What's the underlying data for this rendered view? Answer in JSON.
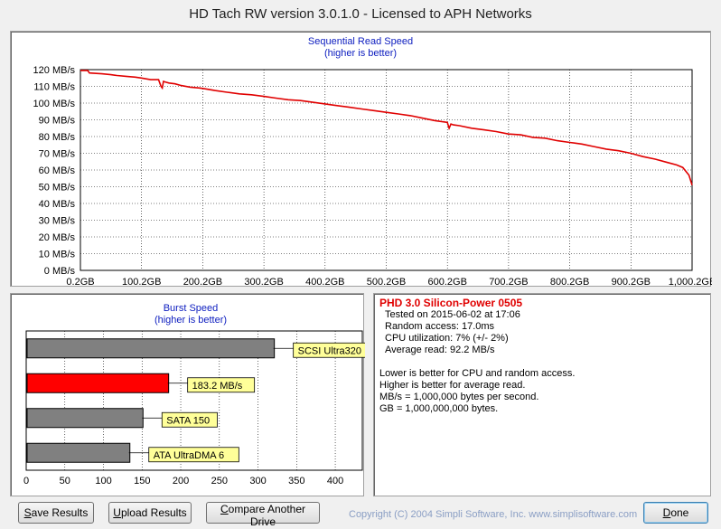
{
  "window": {
    "title": "HD Tach RW version 3.0.1.0 - Licensed to APH Networks"
  },
  "chart_data": [
    {
      "type": "line",
      "title": "Sequential Read Speed",
      "subtitle": "(higher is better)",
      "y_ticks": [
        "0 MB/s",
        "10 MB/s",
        "20 MB/s",
        "30 MB/s",
        "40 MB/s",
        "50 MB/s",
        "60 MB/s",
        "70 MB/s",
        "80 MB/s",
        "90 MB/s",
        "100 MB/s",
        "110 MB/s",
        "120 MB/s"
      ],
      "x_ticks": [
        "0.2GB",
        "100.2GB",
        "200.2GB",
        "300.2GB",
        "400.2GB",
        "500.2GB",
        "600.2GB",
        "700.2GB",
        "800.2GB",
        "900.2GB",
        "1,000.2GB"
      ],
      "ylim": [
        0,
        120
      ],
      "xlim": [
        0.2,
        1000.2
      ],
      "grid": true,
      "line_color": "#e00000",
      "series": [
        {
          "x": [
            0.2,
            12,
            15,
            35,
            50,
            60,
            75,
            90,
            100,
            115,
            128,
            132,
            134,
            136,
            140,
            145,
            155,
            165,
            180,
            195,
            205,
            220,
            240,
            260,
            280,
            300,
            320,
            340,
            360,
            380,
            400,
            420,
            440,
            460,
            480,
            500,
            520,
            540,
            560,
            580,
            600,
            603,
            606,
            610,
            620,
            640,
            660,
            680,
            700,
            720,
            740,
            760,
            780,
            800,
            820,
            840,
            860,
            880,
            900,
            920,
            940,
            960,
            975,
            985,
            995,
            1000.2
          ],
          "y": [
            119.5,
            119.5,
            118,
            117.5,
            117,
            116.5,
            116,
            115.5,
            115,
            114,
            114,
            110,
            109,
            113,
            112.5,
            112,
            111.5,
            110.5,
            109.5,
            109,
            108.5,
            107.5,
            106.5,
            105.5,
            105,
            104,
            103,
            102,
            101.5,
            100.5,
            99.5,
            98.5,
            97.5,
            96.5,
            95.5,
            94.5,
            93.5,
            92.5,
            91,
            89.5,
            88.5,
            85,
            87.5,
            87,
            86.5,
            85,
            84,
            83,
            81.5,
            81,
            79.5,
            79,
            77.5,
            76.5,
            75.5,
            74,
            72.5,
            71.5,
            70,
            68,
            66.5,
            64.5,
            63,
            61.5,
            57,
            51
          ]
        }
      ]
    },
    {
      "type": "bar",
      "orientation": "horizontal",
      "title": "Burst Speed",
      "subtitle": "(higher is better)",
      "x_ticks": [
        "0",
        "50",
        "100",
        "150",
        "200",
        "250",
        "300",
        "350",
        "400"
      ],
      "xlim": [
        0,
        435
      ],
      "grid": true,
      "categories": [
        "SCSI Ultra320",
        "183.2 MB/s",
        "SATA 150",
        "ATA UltraDMA 6"
      ],
      "values": [
        320,
        183.2,
        150,
        133
      ],
      "colors": [
        "#808080",
        "#ff0000",
        "#808080",
        "#808080"
      ],
      "label_color": "#ffff99"
    }
  ],
  "info": {
    "drive_name": "PHD 3.0 Silicon-Power 0505",
    "tested": "Tested on 2015-06-02 at 17:06",
    "random_access": "Random access: 17.0ms",
    "cpu": "CPU utilization: 7% (+/- 2%)",
    "average_read": "Average read: 92.2 MB/s",
    "note1": "Lower is better for CPU and random access.",
    "note2": "Higher is better for average read.",
    "note3": "MB/s = 1,000,000 bytes per second.",
    "note4": "GB = 1,000,000,000 bytes."
  },
  "buttons": {
    "save_first": "S",
    "save_rest": "ave Results",
    "upload_first": "U",
    "upload_rest": "pload Results",
    "compare_first": "C",
    "compare_rest": "ompare Another Drive",
    "done_first": "D",
    "done_rest": "one"
  },
  "copyright": "Copyright (C) 2004 Simpli Software, Inc. www.simplisoftware.com"
}
